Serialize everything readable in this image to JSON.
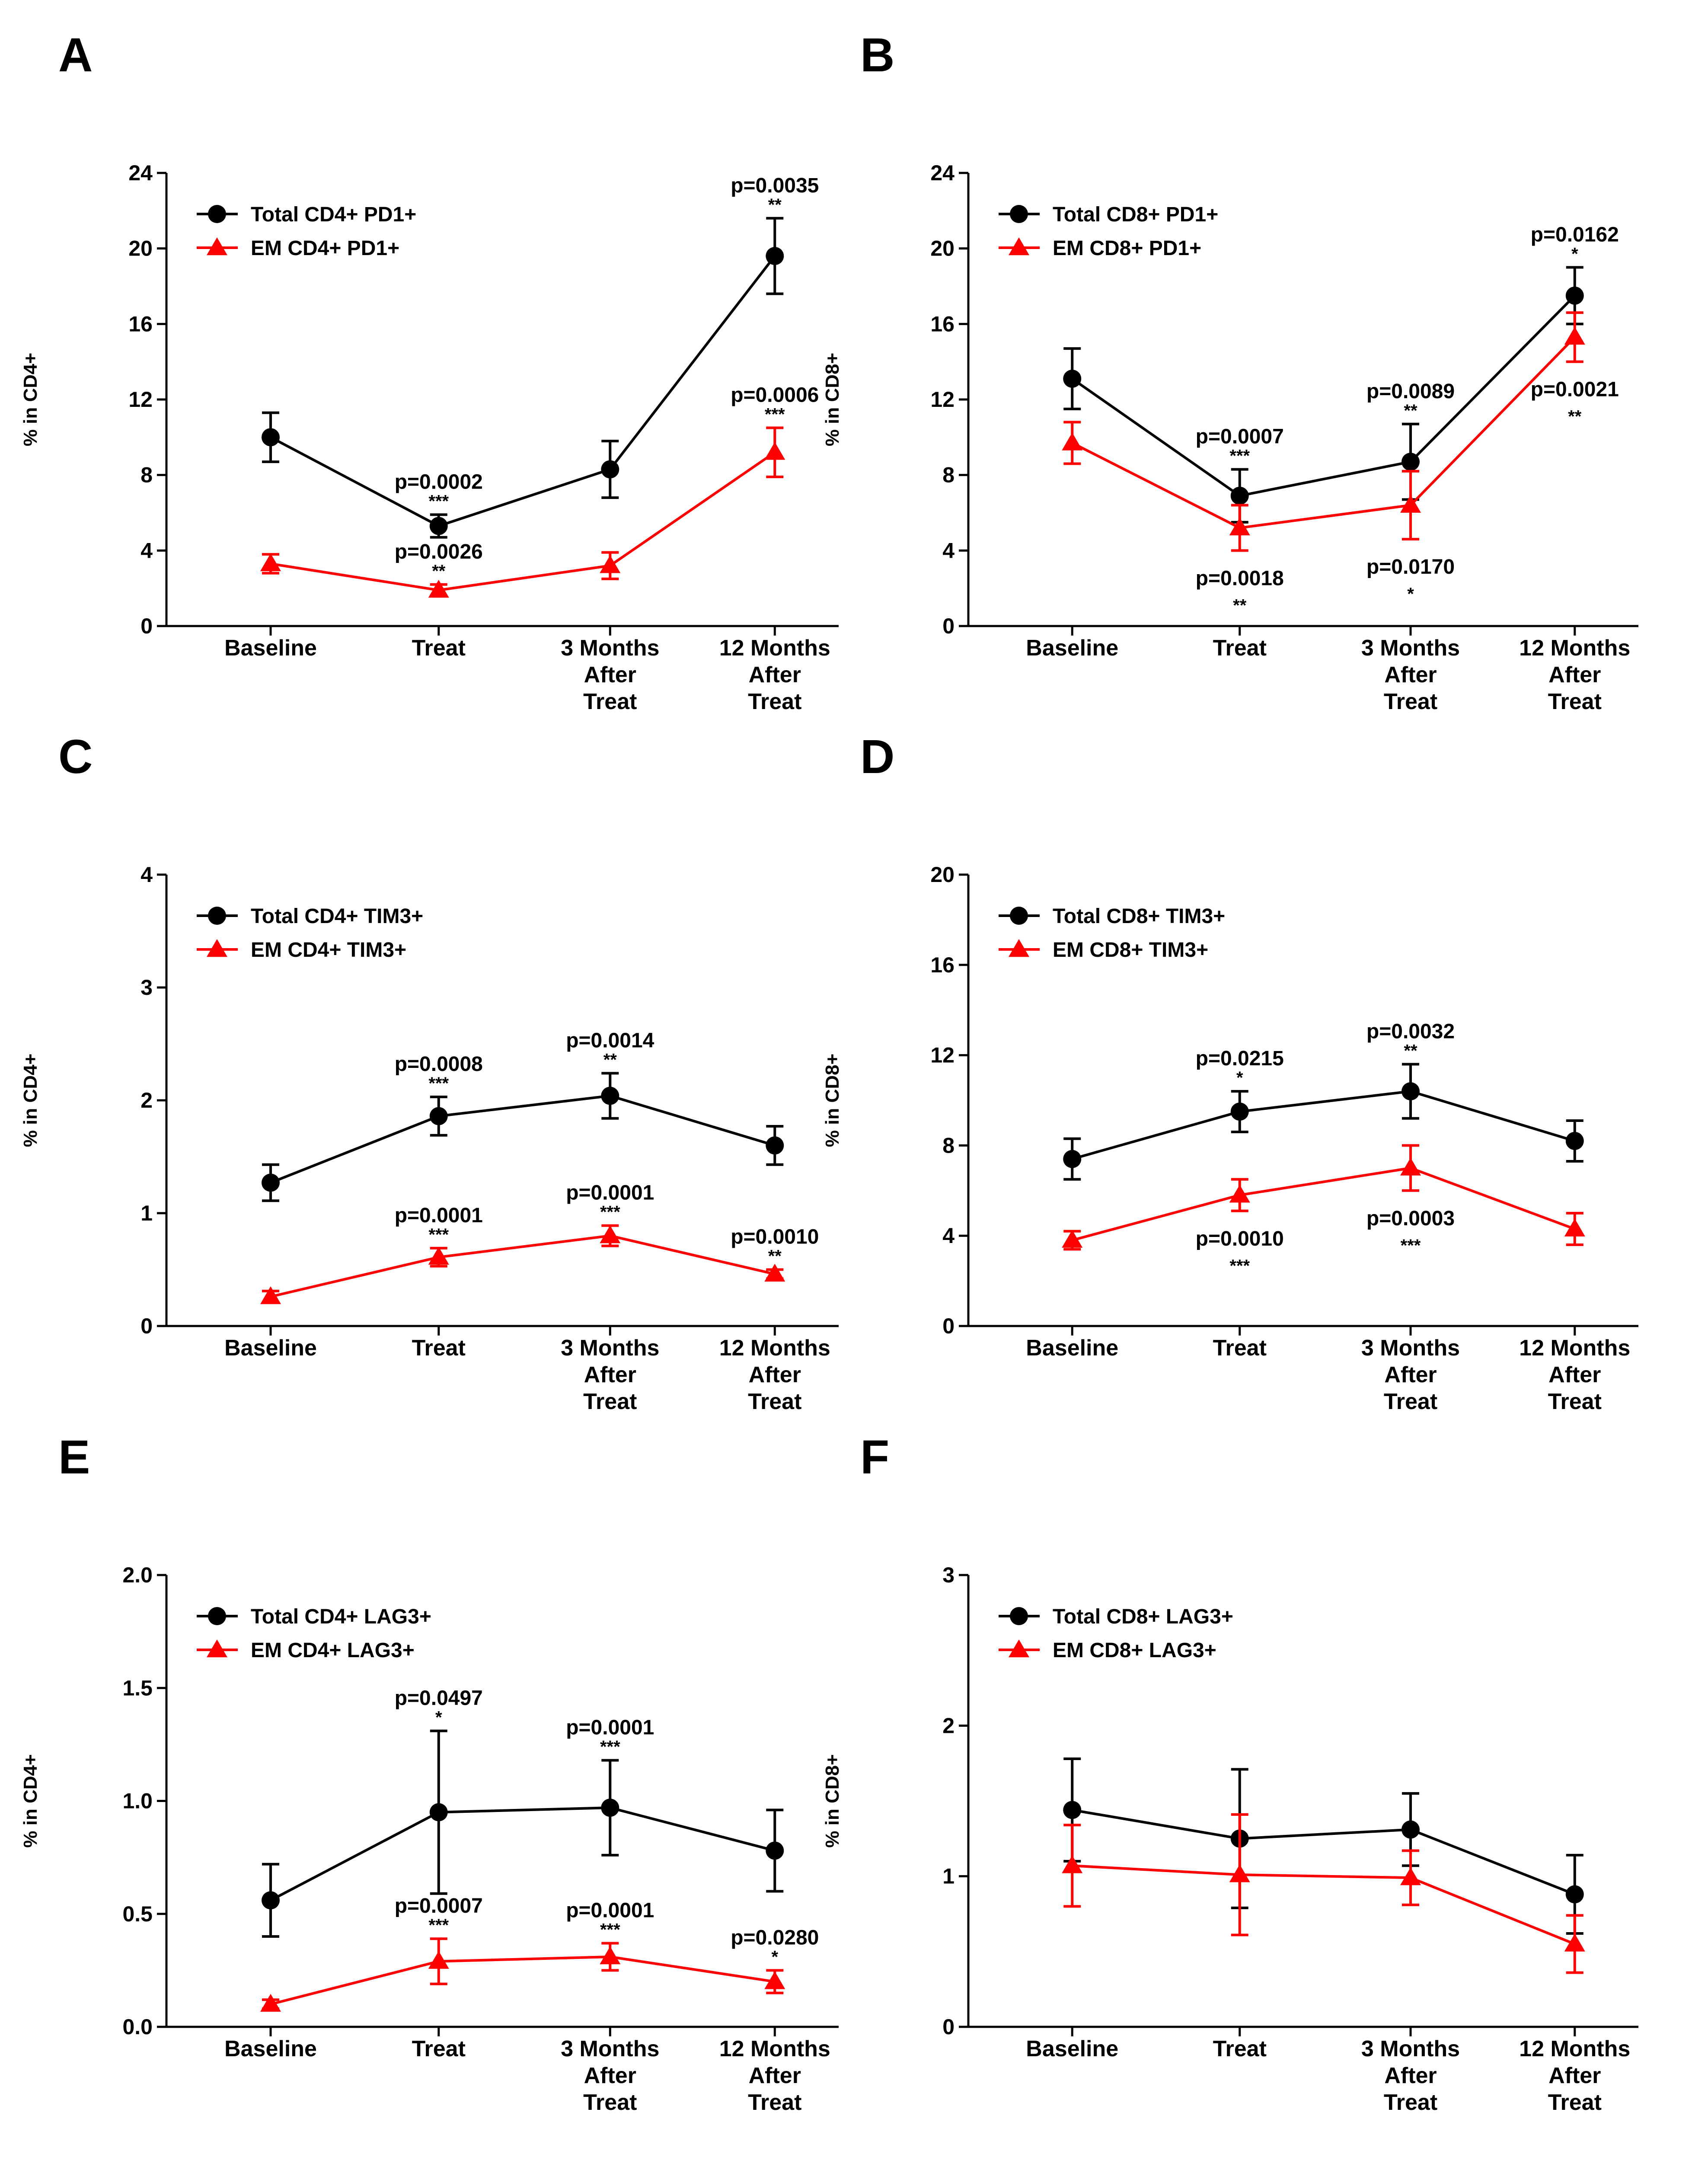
{
  "figure": {
    "title": ""
  },
  "chart_data": [
    {
      "type": "line",
      "panel": "A",
      "ylabel": "% in CD4+",
      "xlabel": "",
      "ylim": [
        0,
        24
      ],
      "yticks": [
        0,
        4,
        8,
        12,
        16,
        20,
        24
      ],
      "categories": [
        "Baseline",
        "Treat",
        "3 Months\nAfter\nTreat",
        "12 Months\nAfter\nTreat"
      ],
      "legend_position": "top-left",
      "series": [
        {
          "name": "Total CD4+ PD1+",
          "color": "#000000",
          "marker": "circle",
          "values": [
            10.0,
            5.3,
            8.3,
            19.6
          ],
          "errors": [
            1.3,
            0.6,
            1.5,
            2.0
          ]
        },
        {
          "name": "EM CD4+ PD1+",
          "color": "#ff0000",
          "marker": "triangle",
          "values": [
            3.3,
            1.9,
            3.2,
            9.2
          ],
          "errors": [
            0.5,
            0.3,
            0.7,
            1.3
          ]
        }
      ],
      "annotations": [
        {
          "series": 0,
          "index": 1,
          "text": "p=0.0002",
          "stars": "***",
          "place": "above"
        },
        {
          "series": 0,
          "index": 3,
          "text": "p=0.0035",
          "stars": "**",
          "place": "above"
        },
        {
          "series": 1,
          "index": 1,
          "text": "p=0.0026",
          "stars": "**",
          "place": "above"
        },
        {
          "series": 1,
          "index": 3,
          "text": "p=0.0006",
          "stars": "***",
          "place": "above"
        }
      ]
    },
    {
      "type": "line",
      "panel": "B",
      "ylabel": "% in CD8+",
      "xlabel": "",
      "ylim": [
        0,
        24
      ],
      "yticks": [
        0,
        4,
        8,
        12,
        16,
        20,
        24
      ],
      "categories": [
        "Baseline",
        "Treat",
        "3 Months\nAfter\nTreat",
        "12 Months\nAfter\nTreat"
      ],
      "legend_position": "top-left",
      "series": [
        {
          "name": "Total CD8+ PD1+",
          "color": "#000000",
          "marker": "circle",
          "values": [
            13.1,
            6.9,
            8.7,
            17.5
          ],
          "errors": [
            1.6,
            1.4,
            2.0,
            1.5
          ]
        },
        {
          "name": "EM CD8+ PD1+",
          "color": "#ff0000",
          "marker": "triangle",
          "values": [
            9.7,
            5.2,
            6.4,
            15.3
          ],
          "errors": [
            1.1,
            1.2,
            1.8,
            1.3
          ]
        }
      ],
      "annotations": [
        {
          "series": 0,
          "index": 1,
          "text": "p=0.0007",
          "stars": "***",
          "place": "above"
        },
        {
          "series": 0,
          "index": 2,
          "text": "p=0.0089",
          "stars": "**",
          "place": "above"
        },
        {
          "series": 0,
          "index": 3,
          "text": "p=0.0162",
          "stars": "*",
          "place": "above"
        },
        {
          "series": 1,
          "index": 1,
          "text": "p=0.0018",
          "stars": "**",
          "place": "below"
        },
        {
          "series": 1,
          "index": 2,
          "text": "p=0.0170",
          "stars": "*",
          "place": "below"
        },
        {
          "series": 1,
          "index": 3,
          "text": "p=0.0021",
          "stars": "**",
          "place": "below"
        }
      ]
    },
    {
      "type": "line",
      "panel": "C",
      "ylabel": "% in CD4+",
      "xlabel": "",
      "ylim": [
        0,
        4
      ],
      "yticks": [
        0,
        1,
        2,
        3,
        4
      ],
      "categories": [
        "Baseline",
        "Treat",
        "3 Months\nAfter\nTreat",
        "12 Months\nAfter\nTreat"
      ],
      "legend_position": "top-left",
      "series": [
        {
          "name": "Total CD4+ TIM3+",
          "color": "#000000",
          "marker": "circle",
          "values": [
            1.27,
            1.86,
            2.04,
            1.6
          ],
          "errors": [
            0.16,
            0.17,
            0.2,
            0.17
          ]
        },
        {
          "name": "EM CD4+ TIM3+",
          "color": "#ff0000",
          "marker": "triangle",
          "values": [
            0.26,
            0.61,
            0.8,
            0.46
          ],
          "errors": [
            0.05,
            0.08,
            0.09,
            0.04
          ]
        }
      ],
      "annotations": [
        {
          "series": 0,
          "index": 1,
          "text": "p=0.0008",
          "stars": "***",
          "place": "above"
        },
        {
          "series": 0,
          "index": 2,
          "text": "p=0.0014",
          "stars": "**",
          "place": "above"
        },
        {
          "series": 1,
          "index": 1,
          "text": "p=0.0001",
          "stars": "***",
          "place": "above"
        },
        {
          "series": 1,
          "index": 2,
          "text": "p=0.0001",
          "stars": "***",
          "place": "above"
        },
        {
          "series": 1,
          "index": 3,
          "text": "p=0.0010",
          "stars": "**",
          "place": "above"
        }
      ]
    },
    {
      "type": "line",
      "panel": "D",
      "ylabel": "% in CD8+",
      "xlabel": "",
      "ylim": [
        0,
        20
      ],
      "yticks": [
        0,
        4,
        8,
        12,
        16,
        20
      ],
      "categories": [
        "Baseline",
        "Treat",
        "3 Months\nAfter\nTreat",
        "12 Months\nAfter\nTreat"
      ],
      "legend_position": "top-left",
      "series": [
        {
          "name": "Total CD8+ TIM3+",
          "color": "#000000",
          "marker": "circle",
          "values": [
            7.4,
            9.5,
            10.4,
            8.2
          ],
          "errors": [
            0.9,
            0.9,
            1.2,
            0.9
          ]
        },
        {
          "name": "EM CD8+ TIM3+",
          "color": "#ff0000",
          "marker": "triangle",
          "values": [
            3.8,
            5.8,
            7.0,
            4.3
          ],
          "errors": [
            0.4,
            0.7,
            1.0,
            0.7
          ]
        }
      ],
      "annotations": [
        {
          "series": 0,
          "index": 1,
          "text": "p=0.0215",
          "stars": "*",
          "place": "above"
        },
        {
          "series": 0,
          "index": 2,
          "text": "p=0.0032",
          "stars": "**",
          "place": "above"
        },
        {
          "series": 1,
          "index": 1,
          "text": "p=0.0010",
          "stars": "***",
          "place": "below"
        },
        {
          "series": 1,
          "index": 2,
          "text": "p=0.0003",
          "stars": "***",
          "place": "below"
        }
      ]
    },
    {
      "type": "line",
      "panel": "E",
      "ylabel": "% in CD4+",
      "xlabel": "",
      "ylim": [
        0,
        2
      ],
      "yticks": [
        0.0,
        0.5,
        1.0,
        1.5,
        2.0
      ],
      "ytick_labels": [
        "0.0",
        "0.5",
        "1.0",
        "1.5",
        "2.0"
      ],
      "categories": [
        "Baseline",
        "Treat",
        "3 Months\nAfter\nTreat",
        "12 Months\nAfter\nTreat"
      ],
      "legend_position": "top-left",
      "series": [
        {
          "name": "Total CD4+ LAG3+",
          "color": "#000000",
          "marker": "circle",
          "values": [
            0.56,
            0.95,
            0.97,
            0.78
          ],
          "errors": [
            0.16,
            0.36,
            0.21,
            0.18
          ]
        },
        {
          "name": "EM CD4+ LAG3+",
          "color": "#ff0000",
          "marker": "triangle",
          "values": [
            0.1,
            0.29,
            0.31,
            0.2
          ],
          "errors": [
            0.02,
            0.1,
            0.06,
            0.05
          ]
        }
      ],
      "annotations": [
        {
          "series": 0,
          "index": 1,
          "text": "p=0.0497",
          "stars": "*",
          "place": "above"
        },
        {
          "series": 0,
          "index": 2,
          "text": "p=0.0001",
          "stars": "***",
          "place": "above"
        },
        {
          "series": 1,
          "index": 1,
          "text": "p=0.0007",
          "stars": "***",
          "place": "above"
        },
        {
          "series": 1,
          "index": 2,
          "text": "p=0.0001",
          "stars": "***",
          "place": "above"
        },
        {
          "series": 1,
          "index": 3,
          "text": "p=0.0280",
          "stars": "*",
          "place": "above"
        }
      ]
    },
    {
      "type": "line",
      "panel": "F",
      "ylabel": "% in CD8+",
      "xlabel": "",
      "ylim": [
        0,
        3
      ],
      "yticks": [
        0,
        1,
        2,
        3
      ],
      "categories": [
        "Baseline",
        "Treat",
        "3 Months\nAfter\nTreat",
        "12 Months\nAfter\nTreat"
      ],
      "legend_position": "top-left",
      "series": [
        {
          "name": "Total CD8+ LAG3+",
          "color": "#000000",
          "marker": "circle",
          "values": [
            1.44,
            1.25,
            1.31,
            0.88
          ],
          "errors": [
            0.34,
            0.46,
            0.24,
            0.26
          ]
        },
        {
          "name": "EM CD8+ LAG3+",
          "color": "#ff0000",
          "marker": "triangle",
          "values": [
            1.07,
            1.01,
            0.99,
            0.55
          ],
          "errors": [
            0.27,
            0.4,
            0.18,
            0.19
          ]
        }
      ],
      "annotations": []
    }
  ]
}
